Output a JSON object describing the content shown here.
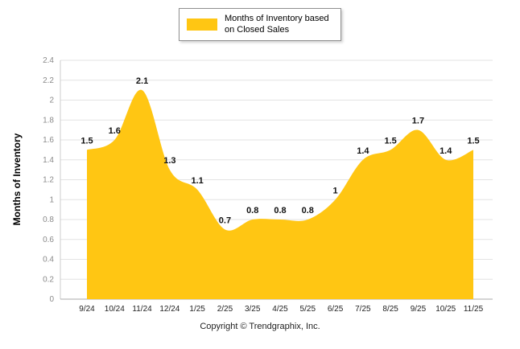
{
  "legend": {
    "label": "Months of Inventory based on Closed Sales",
    "swatch_color": "#FFC613"
  },
  "footer": {
    "copyright": "Copyright © Trendgraphix, Inc."
  },
  "chart_data": {
    "type": "area",
    "title": "",
    "xlabel": "",
    "ylabel": "Months of Inventory",
    "categories": [
      "9/24",
      "10/24",
      "11/24",
      "12/24",
      "1/25",
      "2/25",
      "3/25",
      "4/25",
      "5/25",
      "6/25",
      "7/25",
      "8/25",
      "9/25",
      "10/25",
      "11/25"
    ],
    "values": [
      1.5,
      1.6,
      2.1,
      1.3,
      1.1,
      0.7,
      0.8,
      0.8,
      0.8,
      1,
      1.4,
      1.5,
      1.7,
      1.4,
      1.5
    ],
    "ylim": [
      0,
      2.4
    ],
    "ytick_step": 0.2,
    "grid": true,
    "legend_position": "top",
    "series_color": "#FFC613",
    "label_color": "#111111",
    "grid_color": "#e3e3e3",
    "axis_color": "#aaaaaa",
    "ytick_color": "#8a8a8a",
    "xtick_color": "#222222"
  }
}
